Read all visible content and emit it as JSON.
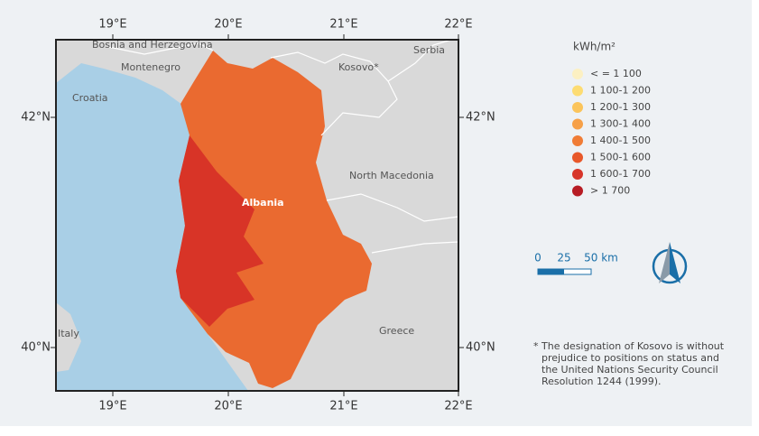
{
  "map": {
    "longitude_ticks": [
      "19°E",
      "20°E",
      "21°E",
      "22°E"
    ],
    "latitude_ticks": [
      "42°N",
      "40°N"
    ],
    "place_labels": [
      "Bosnia and Herzegovina",
      "Serbia",
      "Montenegro",
      "Kosovo*",
      "Croatia",
      "Albania",
      "North Macedonia",
      "Italy",
      "Greece"
    ],
    "colors": {
      "sea": "#a9cfe6",
      "land": "#d9d9d9",
      "albania_high": "#ea6a30",
      "albania_low": "#d83427"
    }
  },
  "legend": {
    "title": "kWh/m²",
    "items": [
      {
        "label": "< = 1 100",
        "color": "#fcf0c2"
      },
      {
        "label": "1 100-1 200",
        "color": "#fddc72"
      },
      {
        "label": "1 200-1 300",
        "color": "#fbc45a"
      },
      {
        "label": "1 300-1 400",
        "color": "#f6a047"
      },
      {
        "label": "1 400-1 500",
        "color": "#f07c35"
      },
      {
        "label": "1 500-1 600",
        "color": "#e8582a"
      },
      {
        "label": "1 600-1 700",
        "color": "#d7352a"
      },
      {
        "label": "> 1 700",
        "color": "#b71c24"
      }
    ]
  },
  "scale_bar": {
    "labels": [
      "0",
      "25",
      "50 km"
    ]
  },
  "footnote": {
    "lines": [
      "* The designation of Kosovo is without",
      "prejudice to positions on status and",
      "the United Nations Security Council",
      "Resolution 1244 (1999)."
    ]
  }
}
